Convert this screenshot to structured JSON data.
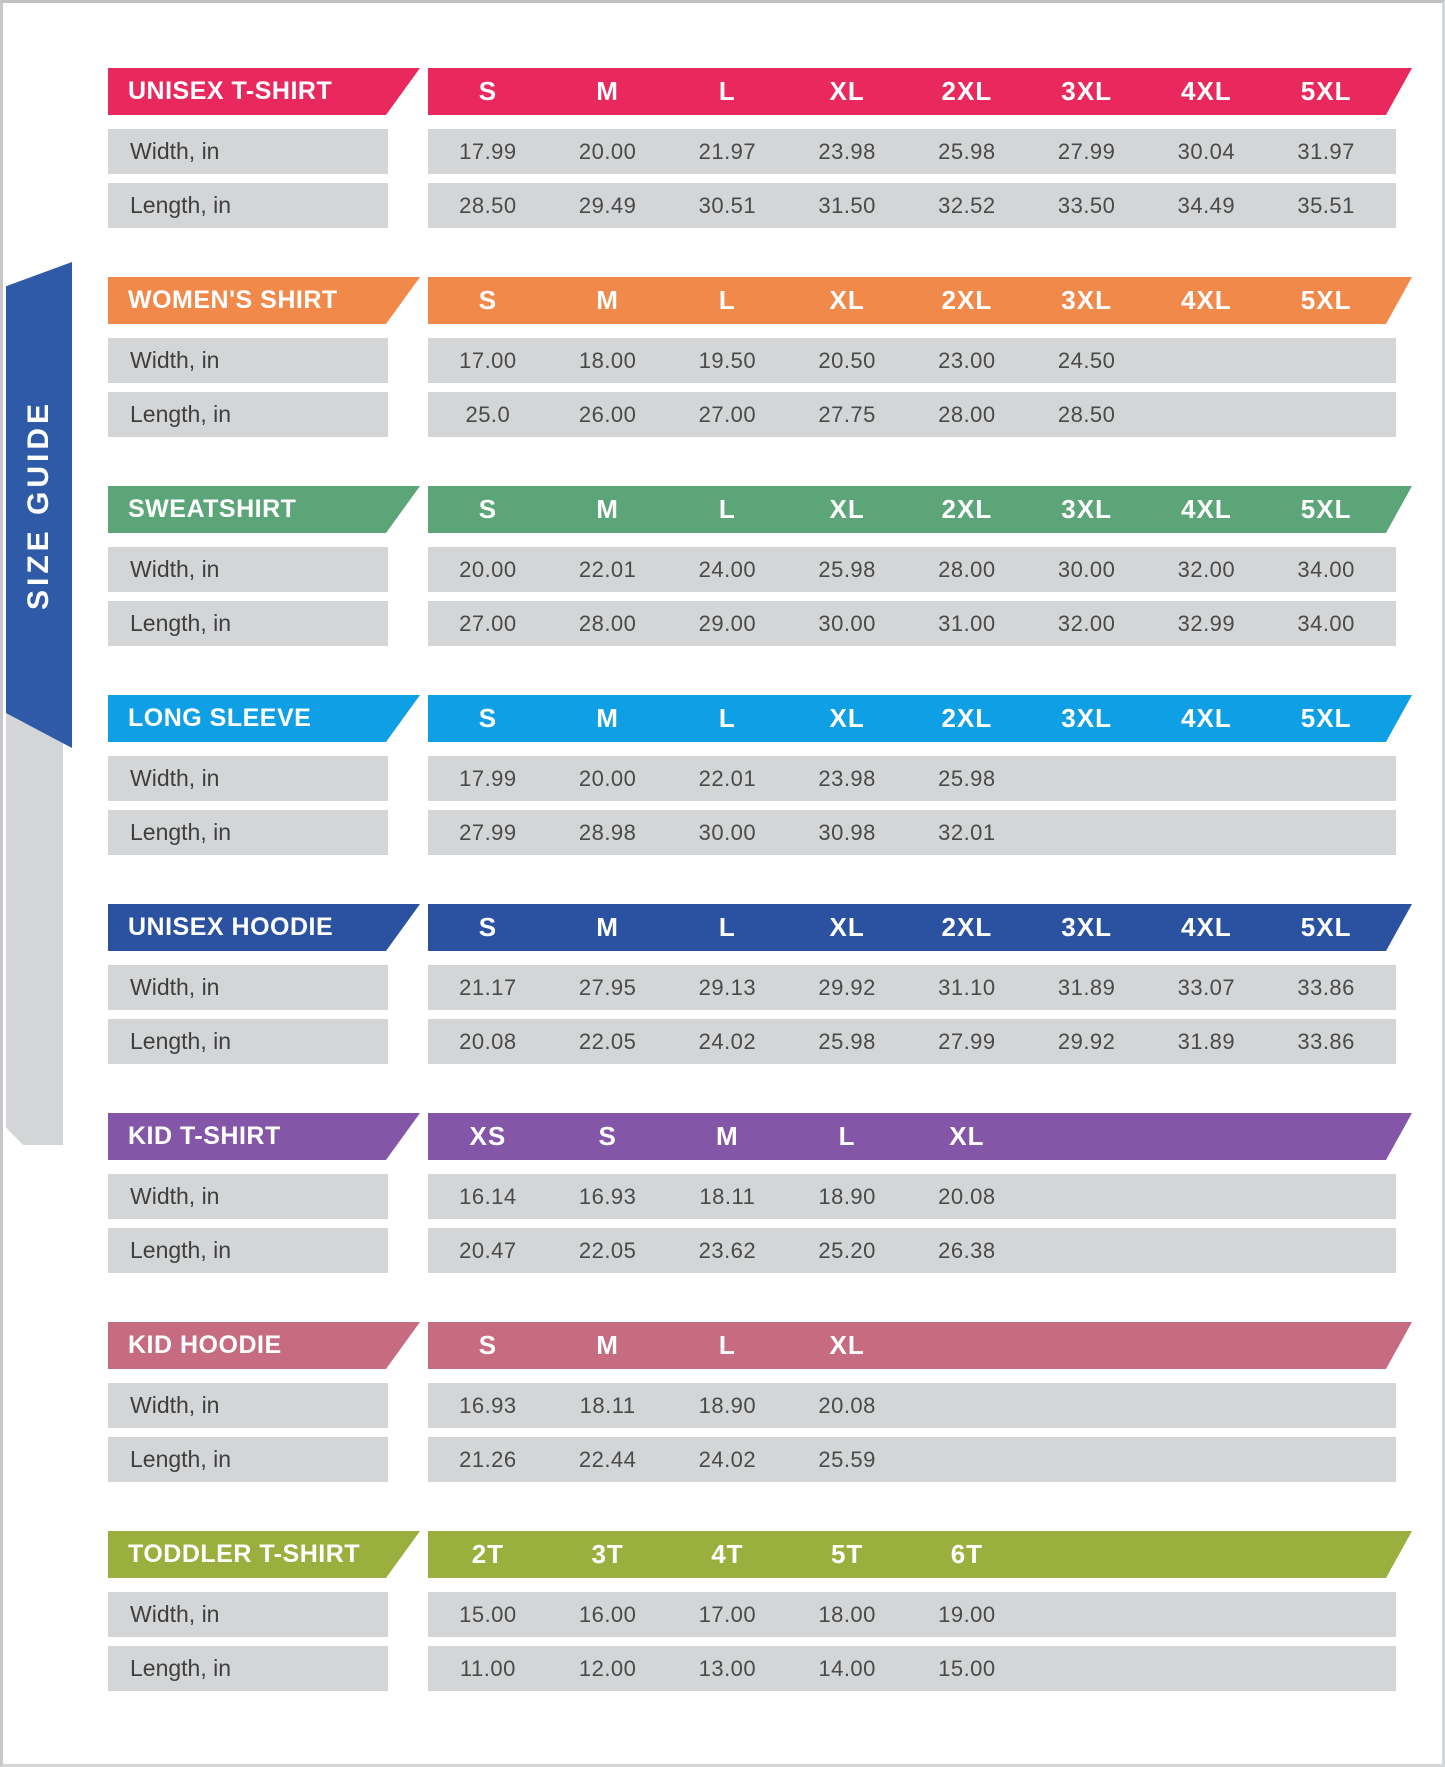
{
  "sidebar": {
    "label": "SIZE GUIDE"
  },
  "colors": {
    "row_bg": "#d3d5d6",
    "ribbon_blue": "#2e5aa8",
    "frame_border": "#c3c5c7",
    "unisex_tshirt": "#e9295e",
    "womens_shirt": "#f1894b",
    "sweatshirt": "#5ba578",
    "long_sleeve": "#0e9fe4",
    "unisex_hoodie": "#2b52a1",
    "kid_tshirt": "#8456a7",
    "kid_hoodie": "#c76b80",
    "toddler_tshirt": "#9aaf3e"
  },
  "chart_data": [
    {
      "type": "table",
      "title": "UNISEX T-SHIRT",
      "accent_color": "#e9295e",
      "columns": [
        "S",
        "M",
        "L",
        "XL",
        "2XL",
        "3XL",
        "4XL",
        "5XL"
      ],
      "rows": [
        {
          "label": "Width, in",
          "values": [
            "17.99",
            "20.00",
            "21.97",
            "23.98",
            "25.98",
            "27.99",
            "30.04",
            "31.97"
          ]
        },
        {
          "label": "Length, in",
          "values": [
            "28.50",
            "29.49",
            "30.51",
            "31.50",
            "32.52",
            "33.50",
            "34.49",
            "35.51"
          ]
        }
      ]
    },
    {
      "type": "table",
      "title": "WOMEN'S SHIRT",
      "accent_color": "#f1894b",
      "columns": [
        "S",
        "M",
        "L",
        "XL",
        "2XL",
        "3XL",
        "4XL",
        "5XL"
      ],
      "rows": [
        {
          "label": "Width, in",
          "values": [
            "17.00",
            "18.00",
            "19.50",
            "20.50",
            "23.00",
            "24.50"
          ]
        },
        {
          "label": "Length, in",
          "values": [
            "25.0",
            "26.00",
            "27.00",
            "27.75",
            "28.00",
            "28.50"
          ]
        }
      ]
    },
    {
      "type": "table",
      "title": "SWEATSHIRT",
      "accent_color": "#5ba578",
      "columns": [
        "S",
        "M",
        "L",
        "XL",
        "2XL",
        "3XL",
        "4XL",
        "5XL"
      ],
      "rows": [
        {
          "label": "Width, in",
          "values": [
            "20.00",
            "22.01",
            "24.00",
            "25.98",
            "28.00",
            "30.00",
            "32.00",
            "34.00"
          ]
        },
        {
          "label": "Length, in",
          "values": [
            "27.00",
            "28.00",
            "29.00",
            "30.00",
            "31.00",
            "32.00",
            "32.99",
            "34.00"
          ]
        }
      ]
    },
    {
      "type": "table",
      "title": "LONG SLEEVE",
      "accent_color": "#0e9fe4",
      "columns": [
        "S",
        "M",
        "L",
        "XL",
        "2XL",
        "3XL",
        "4XL",
        "5XL"
      ],
      "rows": [
        {
          "label": "Width, in",
          "values": [
            "17.99",
            "20.00",
            "22.01",
            "23.98",
            "25.98"
          ]
        },
        {
          "label": "Length, in",
          "values": [
            "27.99",
            "28.98",
            "30.00",
            "30.98",
            "32.01"
          ]
        }
      ]
    },
    {
      "type": "table",
      "title": "UNISEX HOODIE",
      "accent_color": "#2b52a1",
      "columns": [
        "S",
        "M",
        "L",
        "XL",
        "2XL",
        "3XL",
        "4XL",
        "5XL"
      ],
      "rows": [
        {
          "label": "Width, in",
          "values": [
            "21.17",
            "27.95",
            "29.13",
            "29.92",
            "31.10",
            "31.89",
            "33.07",
            "33.86"
          ]
        },
        {
          "label": "Length, in",
          "values": [
            "20.08",
            "22.05",
            "24.02",
            "25.98",
            "27.99",
            "29.92",
            "31.89",
            "33.86"
          ]
        }
      ]
    },
    {
      "type": "table",
      "title": "KID T-SHIRT",
      "accent_color": "#8456a7",
      "columns": [
        "XS",
        "S",
        "M",
        "L",
        "XL"
      ],
      "rows": [
        {
          "label": "Width, in",
          "values": [
            "16.14",
            "16.93",
            "18.11",
            "18.90",
            "20.08"
          ]
        },
        {
          "label": "Length, in",
          "values": [
            "20.47",
            "22.05",
            "23.62",
            "25.20",
            "26.38"
          ]
        }
      ]
    },
    {
      "type": "table",
      "title": "KID HOODIE",
      "accent_color": "#c76b80",
      "columns": [
        "S",
        "M",
        "L",
        "XL"
      ],
      "rows": [
        {
          "label": "Width, in",
          "values": [
            "16.93",
            "18.11",
            "18.90",
            "20.08"
          ]
        },
        {
          "label": "Length, in",
          "values": [
            "21.26",
            "22.44",
            "24.02",
            "25.59"
          ]
        }
      ]
    },
    {
      "type": "table",
      "title": "TODDLER T-SHIRT",
      "accent_color": "#9aaf3e",
      "columns": [
        "2T",
        "3T",
        "4T",
        "5T",
        "6T"
      ],
      "rows": [
        {
          "label": "Width, in",
          "values": [
            "15.00",
            "16.00",
            "17.00",
            "18.00",
            "19.00"
          ]
        },
        {
          "label": "Length, in",
          "values": [
            "11.00",
            "12.00",
            "13.00",
            "14.00",
            "15.00"
          ]
        }
      ]
    }
  ]
}
